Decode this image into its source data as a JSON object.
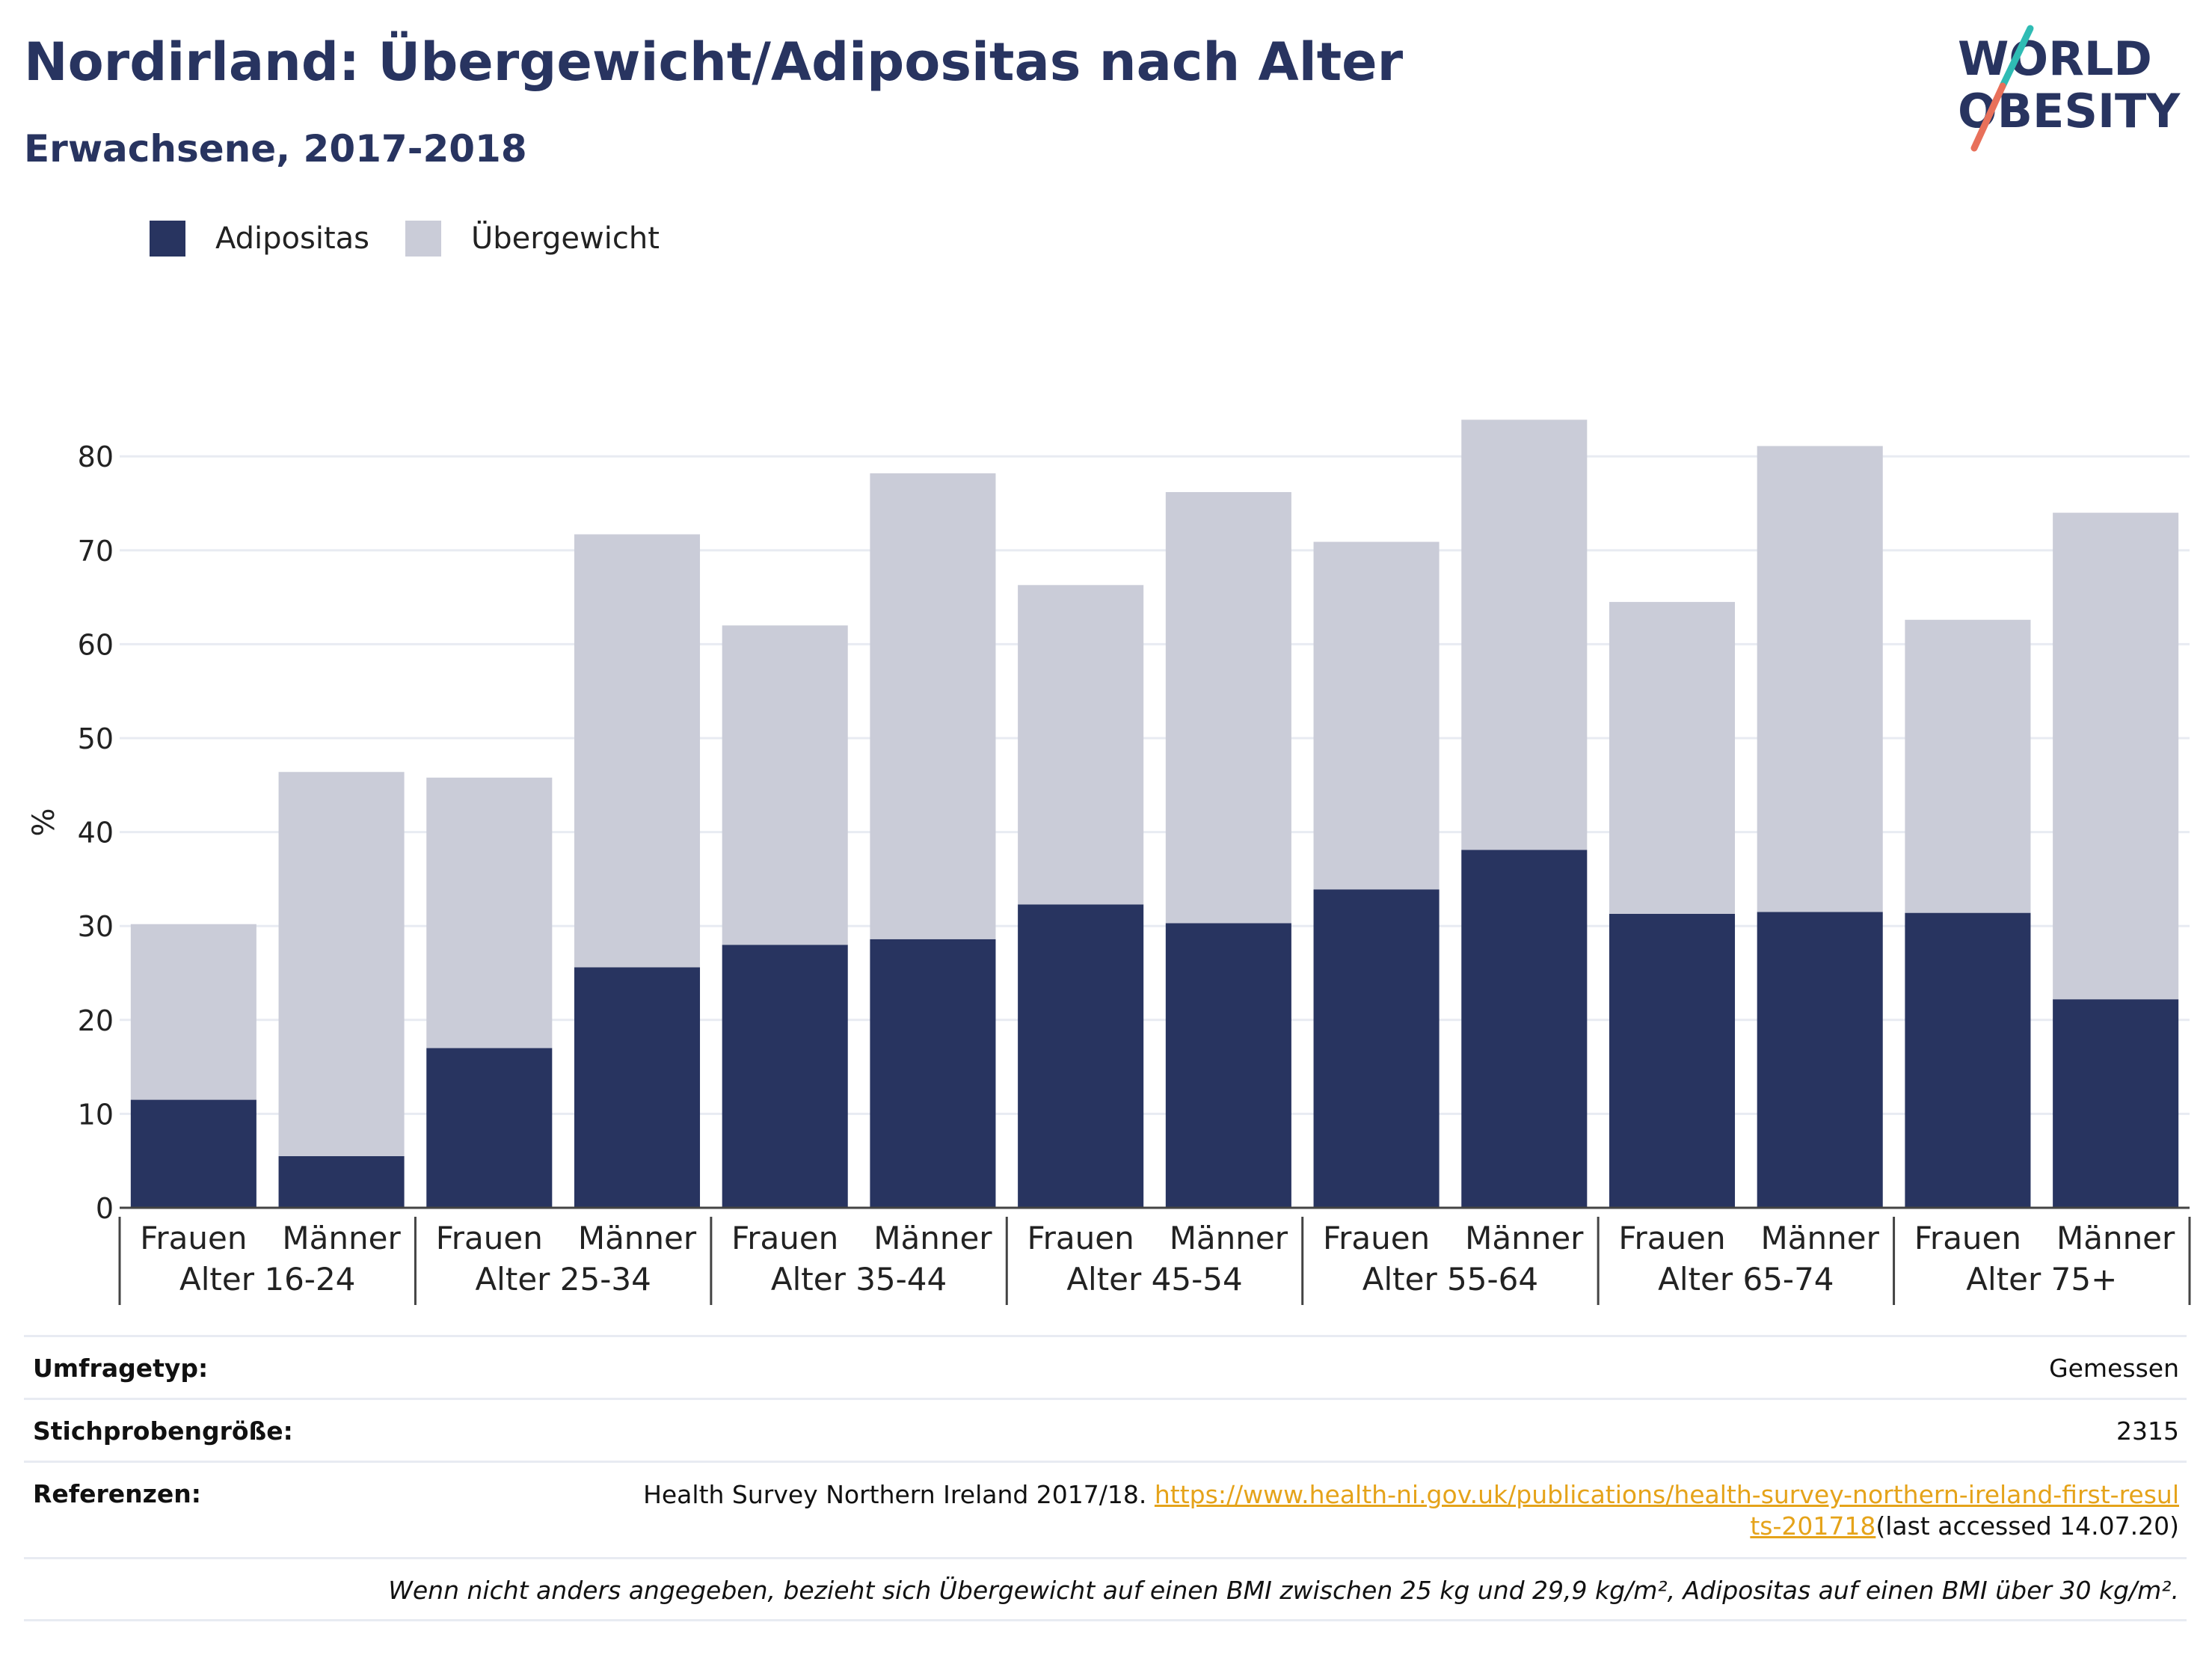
{
  "header": {
    "title": "Nordirland: Übergewicht/Adipositas nach Alter",
    "subtitle": "Erwachsene, 2017-2018"
  },
  "logo": {
    "line1": "WORLD",
    "line2": "OBESITY",
    "accent_colors": [
      "#2fbcb4",
      "#e8705a"
    ],
    "text_color": "#283460"
  },
  "legend": {
    "obesity_label": "Adipositas",
    "overweight_label": "Übergewicht"
  },
  "colors": {
    "obesity": "#283460",
    "overweight": "#caccd8",
    "grid": "#e8ebf2",
    "link": "#e5a31a"
  },
  "chart_data": {
    "type": "bar",
    "stacked": true,
    "ylabel": "%",
    "ylim": [
      0,
      84
    ],
    "yticks": [
      0,
      10,
      20,
      30,
      40,
      50,
      60,
      70,
      80
    ],
    "grid": true,
    "legend_position": "top-left",
    "groups": [
      "Alter 16-24",
      "Alter 25-34",
      "Alter 35-44",
      "Alter 45-54",
      "Alter 55-64",
      "Alter 65-74",
      "Alter 75+"
    ],
    "subcategories": [
      "Frauen",
      "Männer"
    ],
    "series": [
      {
        "name": "Adipositas",
        "values": [
          11.5,
          5.5,
          17.0,
          25.6,
          28.0,
          28.6,
          32.3,
          30.3,
          33.9,
          38.1,
          31.3,
          31.5,
          31.4,
          22.2
        ]
      },
      {
        "name": "Übergewicht",
        "values": [
          18.7,
          40.9,
          28.8,
          46.1,
          34.0,
          49.6,
          34.0,
          45.9,
          37.0,
          45.8,
          33.2,
          49.6,
          31.2,
          51.8
        ]
      }
    ]
  },
  "footer": {
    "survey_type_label": "Umfragetyp:",
    "survey_type_value": "Gemessen",
    "sample_size_label": "Stichprobengröße:",
    "sample_size_value": "2315",
    "references_label": "Referenzen:",
    "reference_text": "Health Survey Northern Ireland 2017/18. ",
    "reference_link": "https://www.health-ni.gov.uk/publications/health-survey-northern-ireland-first-results-201718",
    "reference_suffix": "(last accessed 14.07.20)",
    "note": "Wenn nicht anders angegeben, bezieht sich Übergewicht auf einen BMI zwischen 25 kg und 29,9 kg/m², Adipositas auf einen BMI über 30 kg/m²."
  }
}
